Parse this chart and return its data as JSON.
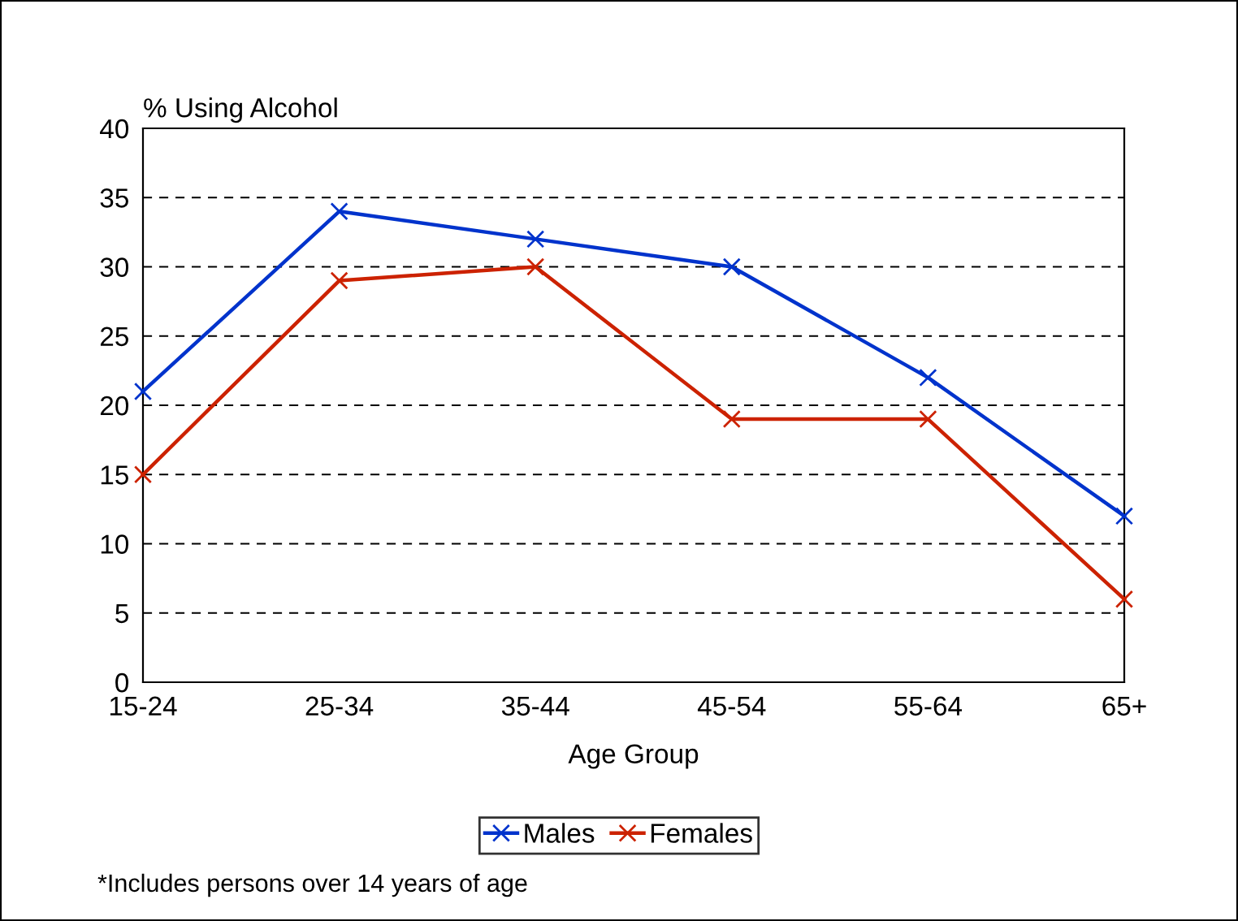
{
  "chart_data": {
    "type": "line",
    "ylabel": "% Using Alcohol",
    "xlabel": "Age Group",
    "categories": [
      "15-24",
      "25-34",
      "35-44",
      "45-54",
      "55-64",
      "65+"
    ],
    "series": [
      {
        "name": "Males",
        "color": "#0033cc",
        "values": [
          21,
          34,
          32,
          30,
          22,
          12
        ]
      },
      {
        "name": "Females",
        "color": "#cc2200",
        "values": [
          15,
          29,
          30,
          19,
          19,
          6
        ]
      }
    ],
    "ylim": [
      0,
      40
    ],
    "yticks": [
      0,
      5,
      10,
      15,
      20,
      25,
      30,
      35,
      40
    ],
    "grid": "y",
    "legend": "bottom",
    "marker": "cross",
    "line_style": "solid",
    "annotations": [
      "*Includes persons over 14 years of age"
    ]
  }
}
